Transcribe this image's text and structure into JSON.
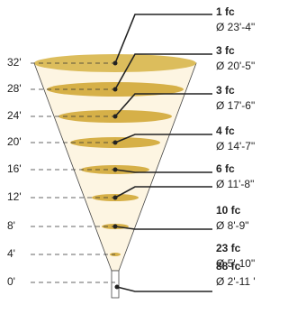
{
  "heights": [
    "32'",
    "28'",
    "24'",
    "20'",
    "16'",
    "12'",
    "8'",
    "4'",
    "0'"
  ],
  "levels": [
    {
      "fc": "1 fc",
      "diameter": "Ø 23'-4\""
    },
    {
      "fc": "3 fc",
      "diameter": "Ø 20'-5\""
    },
    {
      "fc": "3 fc",
      "diameter": "Ø 17'-6\""
    },
    {
      "fc": "4 fc",
      "diameter": "Ø 14'-7\""
    },
    {
      "fc": "6 fc",
      "diameter": "Ø 11'-8\""
    },
    {
      "fc": "10 fc",
      "diameter": "Ø 8'-9\""
    },
    {
      "fc": "23 fc",
      "diameter": "Ø 5'-10\""
    },
    {
      "fc": "88 fc",
      "diameter": "Ø 2'-11 '"
    }
  ]
}
